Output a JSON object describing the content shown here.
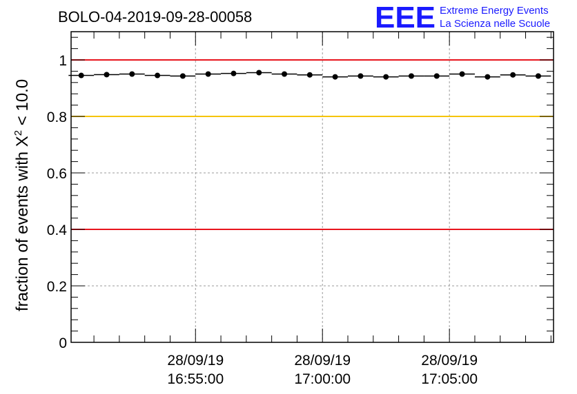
{
  "chart_data": {
    "type": "scatter",
    "title": "BOLO-04-2019-09-28-00058",
    "ylabel_prefix": "fraction of events with ",
    "ylabel_symbol": "X",
    "ylabel_exp": "2",
    "ylabel_suffix": " < 10.0",
    "xlabel": "",
    "ylim": [
      0,
      1.1
    ],
    "xlim_minutes": [
      -4.9,
      14.1
    ],
    "x_minutes": [
      -4.5,
      -3.5,
      -2.5,
      -1.5,
      -0.5,
      0.5,
      1.5,
      2.5,
      3.5,
      4.5,
      5.5,
      6.5,
      7.5,
      8.5,
      9.5,
      10.5,
      11.5,
      12.5,
      13.5
    ],
    "values": [
      0.945,
      0.948,
      0.95,
      0.945,
      0.943,
      0.95,
      0.952,
      0.955,
      0.95,
      0.947,
      0.94,
      0.943,
      0.94,
      0.943,
      0.943,
      0.95,
      0.94,
      0.947,
      0.943
    ],
    "yticks": [
      "0",
      "0.2",
      "0.4",
      "0.6",
      "0.8",
      "1"
    ],
    "ytick_values": [
      0,
      0.2,
      0.4,
      0.6,
      0.8,
      1.0
    ],
    "xticks": [
      {
        "minutes": 0,
        "date": "28/09/19",
        "time": "16:55:00"
      },
      {
        "minutes": 5,
        "date": "28/09/19",
        "time": "17:00:00"
      },
      {
        "minutes": 10,
        "date": "28/09/19",
        "time": "17:05:00"
      }
    ],
    "reference_lines": [
      {
        "value": 1.0,
        "color": "#e8141c"
      },
      {
        "value": 0.8,
        "color": "#f5c400"
      },
      {
        "value": 0.4,
        "color": "#e8141c"
      }
    ],
    "grid": true
  },
  "logo": {
    "mark": "EEE",
    "line1": "Extreme Energy Events",
    "line2": "La Scienza nelle Scuole"
  }
}
